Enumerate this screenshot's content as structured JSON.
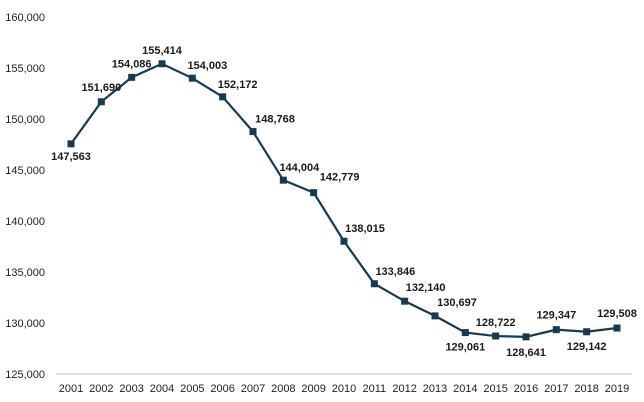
{
  "chart_data": {
    "type": "line",
    "title": "",
    "xlabel": "",
    "ylabel": "",
    "x": [
      "2001",
      "2002",
      "2003",
      "2004",
      "2005",
      "2006",
      "2007",
      "2008",
      "2009",
      "2010",
      "2011",
      "2012",
      "2013",
      "2014",
      "2015",
      "2016",
      "2017",
      "2018",
      "2019"
    ],
    "series": [
      {
        "values": [
          147563,
          151690,
          154086,
          155414,
          154003,
          152172,
          148768,
          144004,
          142779,
          138015,
          133846,
          132140,
          130697,
          129061,
          128722,
          128641,
          129347,
          129142,
          129508
        ],
        "data_labels": [
          "147,563",
          "151,690",
          "154,086",
          "155,414",
          "154,003",
          "152,172",
          "148,768",
          "144,004",
          "142,779",
          "138,015",
          "133,846",
          "132,140",
          "130,697",
          "129,061",
          "128,722",
          "128,641",
          "129,347",
          "129,142",
          "129,508"
        ],
        "color": "#163a50",
        "marker": "square"
      }
    ],
    "ylim": [
      125000,
      160000
    ],
    "yticks": [
      125000,
      130000,
      135000,
      140000,
      145000,
      150000,
      155000,
      160000
    ],
    "ytick_labels": [
      "125,000",
      "130,000",
      "135,000",
      "140,000",
      "145,000",
      "150,000",
      "155,000",
      "160,000"
    ],
    "grid": false,
    "legend": "none"
  }
}
